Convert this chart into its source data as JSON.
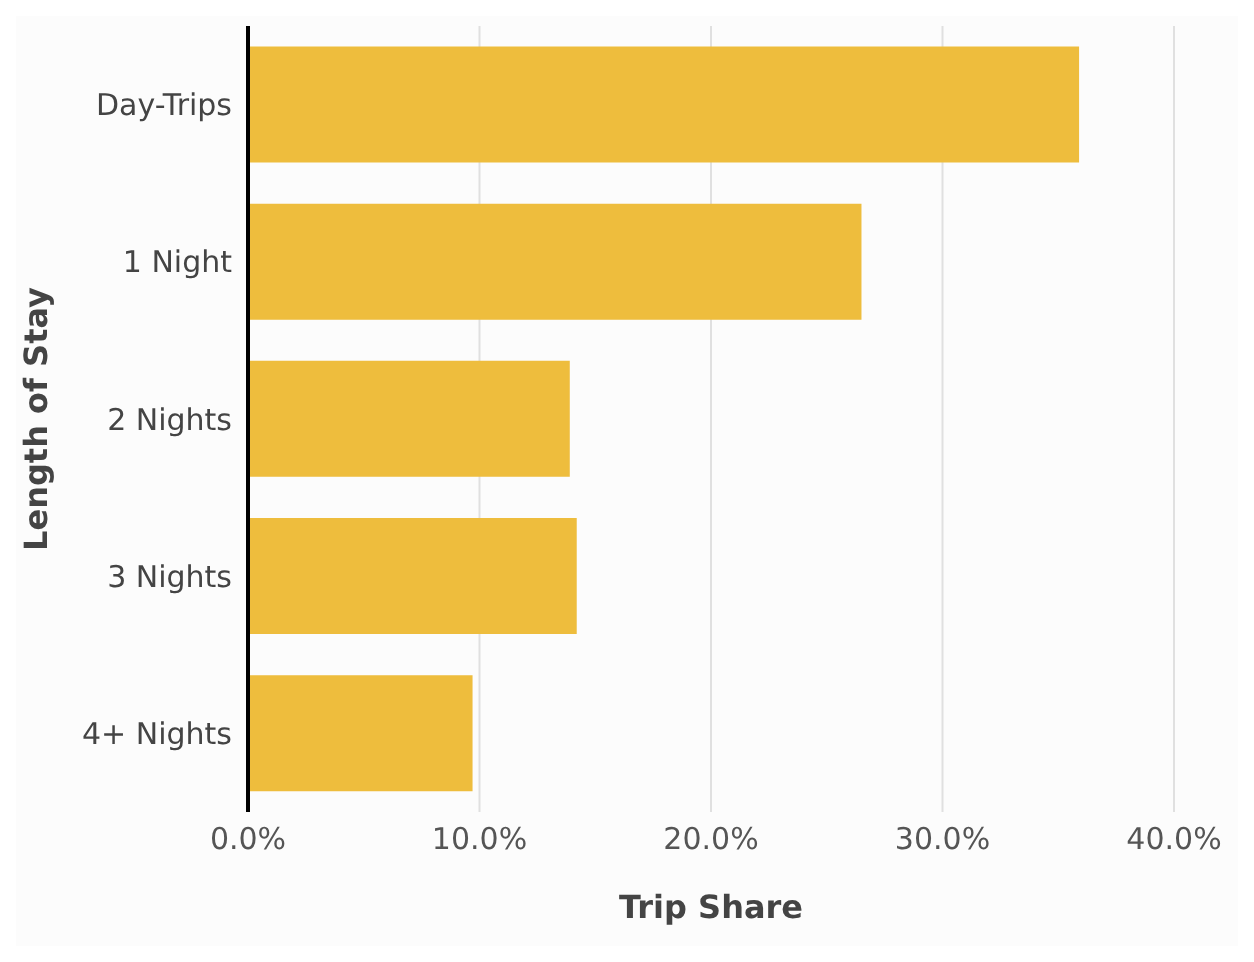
{
  "chart_data": {
    "type": "bar",
    "orientation": "horizontal",
    "xlabel": "Trip Share",
    "ylabel": "Length of Stay",
    "categories": [
      "Day-Trips",
      "1 Night",
      "2 Nights",
      "3 Nights",
      "4+ Nights"
    ],
    "values": [
      35.9,
      26.5,
      13.9,
      14.2,
      9.7
    ],
    "color": "#eebd3d",
    "xlim": [
      0,
      40
    ],
    "xticks": [
      {
        "value": 0,
        "label": "0.0%"
      },
      {
        "value": 10,
        "label": "10.0%"
      },
      {
        "value": 20,
        "label": "20.0%"
      },
      {
        "value": 30,
        "label": "30.0%"
      },
      {
        "value": 40,
        "label": "40.0%"
      }
    ],
    "grid": "x",
    "legend": false
  }
}
